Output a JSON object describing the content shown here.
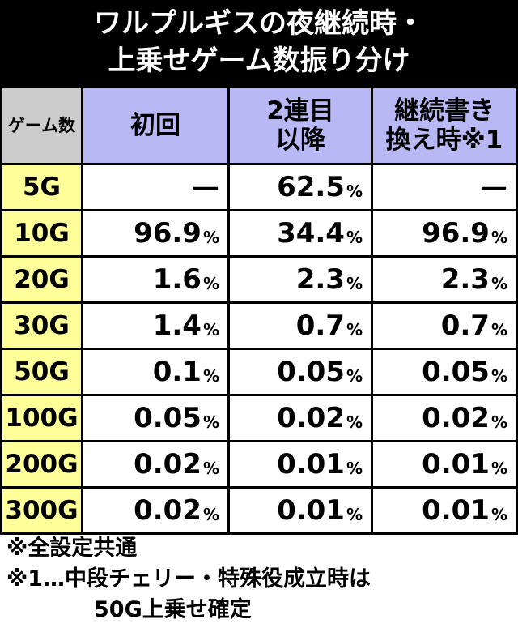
{
  "header": {
    "title": [
      "ワルプルギスの夜継続時・",
      "上乗せゲーム数振り分け"
    ]
  },
  "table": {
    "columns": [
      [
        "ゲーム数"
      ],
      [
        "初回"
      ],
      [
        "2連目",
        "以降"
      ],
      [
        "継続書き",
        "換え時※1"
      ]
    ],
    "rows": [
      {
        "label": "5G",
        "cells": [
          {
            "text": "—"
          },
          {
            "text": "62.5",
            "unit": "%"
          },
          {
            "text": "—"
          }
        ]
      },
      {
        "label": "10G",
        "cells": [
          {
            "text": "96.9",
            "unit": "%"
          },
          {
            "text": "34.4",
            "unit": "%"
          },
          {
            "text": "96.9",
            "unit": "%"
          }
        ]
      },
      {
        "label": "20G",
        "cells": [
          {
            "text": "1.6",
            "unit": "%"
          },
          {
            "text": "2.3",
            "unit": "%"
          },
          {
            "text": "2.3",
            "unit": "%"
          }
        ]
      },
      {
        "label": "30G",
        "cells": [
          {
            "text": "1.4",
            "unit": "%"
          },
          {
            "text": "0.7",
            "unit": "%"
          },
          {
            "text": "0.7",
            "unit": "%"
          }
        ]
      },
      {
        "label": "50G",
        "cells": [
          {
            "text": "0.1",
            "unit": "%"
          },
          {
            "text": "0.05",
            "unit": "%"
          },
          {
            "text": "0.05",
            "unit": "%"
          }
        ]
      },
      {
        "label": "100G",
        "cells": [
          {
            "text": "0.05",
            "unit": "%"
          },
          {
            "text": "0.02",
            "unit": "%"
          },
          {
            "text": "0.02",
            "unit": "%"
          }
        ]
      },
      {
        "label": "200G",
        "cells": [
          {
            "text": "0.02",
            "unit": "%"
          },
          {
            "text": "0.01",
            "unit": "%"
          },
          {
            "text": "0.01",
            "unit": "%"
          }
        ]
      },
      {
        "label": "300G",
        "cells": [
          {
            "text": "0.02",
            "unit": "%"
          },
          {
            "text": "0.01",
            "unit": "%"
          },
          {
            "text": "0.01",
            "unit": "%"
          }
        ]
      }
    ]
  },
  "notes": [
    [
      "※全設定共通"
    ],
    [
      "※1…中段チェリー・特殊役成立時は",
      "50G上乗せ確定"
    ]
  ]
}
